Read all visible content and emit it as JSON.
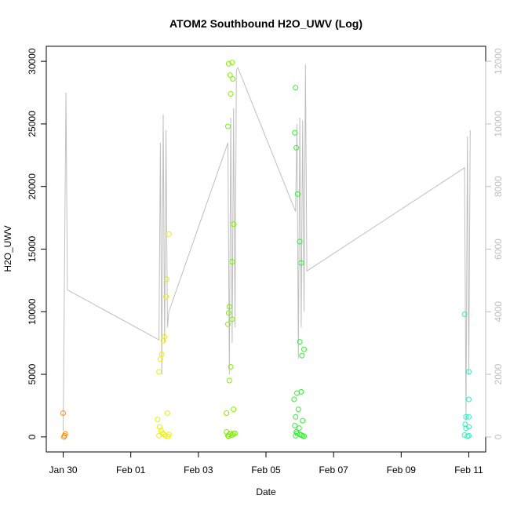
{
  "chart_data": {
    "type": "scatter",
    "title": "ATOM2 Southbound H2O_UWV (Log)",
    "xlabel": "Date",
    "ylabel": "H2O_UWV",
    "xlim": [
      "2017-01-29 12:00",
      "2017-02-11 12:00"
    ],
    "ylim": [
      -1200,
      31200
    ],
    "y2lim": [
      -480,
      12480
    ],
    "x_ticks": [
      {
        "label": "Jan 30",
        "value": "2017-01-30 00:00"
      },
      {
        "label": "Feb 01",
        "value": "2017-02-01 00:00"
      },
      {
        "label": "Feb 03",
        "value": "2017-02-03 00:00"
      },
      {
        "label": "Feb 05",
        "value": "2017-02-05 00:00"
      },
      {
        "label": "Feb 07",
        "value": "2017-02-07 00:00"
      },
      {
        "label": "Feb 09",
        "value": "2017-02-09 00:00"
      },
      {
        "label": "Feb 11",
        "value": "2017-02-11 00:00"
      }
    ],
    "y_ticks": [
      {
        "label": "0",
        "value": 0
      },
      {
        "label": "5000",
        "value": 5000
      },
      {
        "label": "10000",
        "value": 10000
      },
      {
        "label": "15000",
        "value": 15000
      },
      {
        "label": "20000",
        "value": 20000
      },
      {
        "label": "25000",
        "value": 25000
      },
      {
        "label": "30000",
        "value": 30000
      }
    ],
    "y2_ticks": [
      {
        "label": "0",
        "value": 0
      },
      {
        "label": "2000",
        "value": 2000
      },
      {
        "label": "4000",
        "value": 4000
      },
      {
        "label": "6000",
        "value": 6000
      },
      {
        "label": "8000",
        "value": 8000
      },
      {
        "label": "10000",
        "value": 10000
      },
      {
        "label": "12000",
        "value": 12000
      }
    ],
    "grid": false,
    "legend": "none",
    "colors": {
      "track_line": "#bfbfbf",
      "axis": "#000000",
      "right_axis": "#bfbfbf"
    },
    "track_line": {
      "axis": "right",
      "points": [
        [
          "2017-01-30 00:00",
          200
        ],
        [
          "2017-01-30 02:00",
          11000
        ],
        [
          "2017-01-30 03:00",
          4700
        ],
        [
          "2017-02-01 20:00",
          3100
        ],
        [
          "2017-02-01 21:00",
          9400
        ],
        [
          "2017-02-01 22:00",
          2000
        ],
        [
          "2017-02-01 23:00",
          10300
        ],
        [
          "2017-02-02 00:00",
          3000
        ],
        [
          "2017-02-02 01:00",
          9800
        ],
        [
          "2017-02-02 02:00",
          3500
        ],
        [
          "2017-02-02 03:00",
          4000
        ],
        [
          "2017-02-03 21:00",
          9400
        ],
        [
          "2017-02-03 22:00",
          2000
        ],
        [
          "2017-02-03 23:00",
          10200
        ],
        [
          "2017-02-04 00:00",
          3000
        ],
        [
          "2017-02-04 01:00",
          10500
        ],
        [
          "2017-02-04 02:00",
          3500
        ],
        [
          "2017-02-04 03:00",
          11700
        ],
        [
          "2017-02-04 04:00",
          11800
        ],
        [
          "2017-02-05 21:00",
          7200
        ],
        [
          "2017-02-05 22:00",
          10000
        ],
        [
          "2017-02-05 23:00",
          2500
        ],
        [
          "2017-02-06 00:00",
          10200
        ],
        [
          "2017-02-06 01:00",
          3500
        ],
        [
          "2017-02-06 02:00",
          10100
        ],
        [
          "2017-02-06 03:00",
          4000
        ],
        [
          "2017-02-06 04:00",
          11900
        ],
        [
          "2017-02-06 05:00",
          5300
        ],
        [
          "2017-02-10 21:00",
          8600
        ],
        [
          "2017-02-10 22:00",
          500
        ],
        [
          "2017-02-10 23:00",
          9600
        ],
        [
          "2017-02-11 00:00",
          2000
        ],
        [
          "2017-02-11 01:00",
          9800
        ]
      ]
    },
    "series": [
      {
        "color": "#ff8c00",
        "points": [
          [
            "2017-01-30 00:00",
            1900
          ],
          [
            "2017-01-30 00:30",
            0
          ],
          [
            "2017-01-30 01:00",
            100
          ],
          [
            "2017-01-30 01:30",
            250
          ]
        ]
      },
      {
        "color": "#eeee00",
        "points": [
          [
            "2017-02-01 20:00",
            5200
          ],
          [
            "2017-02-01 21:00",
            6200
          ],
          [
            "2017-02-01 22:00",
            6600
          ],
          [
            "2017-02-01 23:00",
            7700
          ],
          [
            "2017-02-02 00:00",
            8000
          ],
          [
            "2017-02-02 01:00",
            11200
          ],
          [
            "2017-02-02 01:30",
            12600
          ],
          [
            "2017-02-02 03:00",
            16200
          ],
          [
            "2017-02-01 19:00",
            1400
          ],
          [
            "2017-02-02 02:00",
            1900
          ],
          [
            "2017-02-01 20:30",
            800
          ],
          [
            "2017-02-01 21:30",
            500
          ],
          [
            "2017-02-01 22:30",
            300
          ],
          [
            "2017-02-01 23:30",
            200
          ],
          [
            "2017-02-02 00:30",
            100
          ],
          [
            "2017-02-02 02:30",
            50
          ],
          [
            "2017-02-01 20:00",
            100
          ],
          [
            "2017-02-02 03:00",
            200
          ]
        ]
      },
      {
        "color": "#80ee00",
        "points": [
          [
            "2017-02-03 21:00",
            24800
          ],
          [
            "2017-02-03 21:30",
            29800
          ],
          [
            "2017-02-03 22:30",
            28900
          ],
          [
            "2017-02-03 23:00",
            27400
          ],
          [
            "2017-02-04 00:00",
            29900
          ],
          [
            "2017-02-04 00:30",
            28600
          ],
          [
            "2017-02-04 01:00",
            17000
          ],
          [
            "2017-02-04 00:00",
            14000
          ],
          [
            "2017-02-03 22:00",
            10400
          ],
          [
            "2017-02-03 21:30",
            9900
          ],
          [
            "2017-02-03 21:00",
            9000
          ],
          [
            "2017-02-04 00:00",
            9400
          ],
          [
            "2017-02-03 23:00",
            5600
          ],
          [
            "2017-02-03 22:00",
            4500
          ],
          [
            "2017-02-04 01:00",
            2200
          ],
          [
            "2017-02-03 20:00",
            1900
          ],
          [
            "2017-02-03 20:00",
            400
          ],
          [
            "2017-02-03 21:00",
            100
          ],
          [
            "2017-02-03 22:00",
            200
          ],
          [
            "2017-02-03 23:00",
            300
          ],
          [
            "2017-02-04 00:00",
            150
          ],
          [
            "2017-02-04 01:00",
            250
          ],
          [
            "2017-02-04 02:00",
            300
          ],
          [
            "2017-02-03 21:30",
            50
          ]
        ]
      },
      {
        "color": "#33ee33",
        "points": [
          [
            "2017-02-05 21:00",
            27900
          ],
          [
            "2017-02-05 20:30",
            24300
          ],
          [
            "2017-02-05 21:30",
            23100
          ],
          [
            "2017-02-05 22:30",
            19400
          ],
          [
            "2017-02-06 00:00",
            15600
          ],
          [
            "2017-02-06 01:00",
            13900
          ],
          [
            "2017-02-06 00:00",
            7600
          ],
          [
            "2017-02-06 03:00",
            7000
          ],
          [
            "2017-02-06 01:30",
            6500
          ],
          [
            "2017-02-06 01:00",
            3600
          ],
          [
            "2017-02-05 22:00",
            3500
          ],
          [
            "2017-02-05 20:00",
            3000
          ],
          [
            "2017-02-05 23:00",
            2200
          ],
          [
            "2017-02-05 21:00",
            1600
          ],
          [
            "2017-02-06 02:00",
            1300
          ],
          [
            "2017-02-05 20:30",
            900
          ],
          [
            "2017-02-05 23:30",
            700
          ],
          [
            "2017-02-05 21:30",
            400
          ],
          [
            "2017-02-05 22:00",
            300
          ],
          [
            "2017-02-06 00:00",
            200
          ],
          [
            "2017-02-06 01:00",
            150
          ],
          [
            "2017-02-06 02:00",
            100
          ],
          [
            "2017-02-06 03:00",
            50
          ],
          [
            "2017-02-05 21:00",
            100
          ]
        ]
      },
      {
        "color": "#33eebb",
        "points": [
          [
            "2017-02-10 21:00",
            9800
          ],
          [
            "2017-02-11 00:00",
            5200
          ],
          [
            "2017-02-11 00:00",
            3000
          ],
          [
            "2017-02-10 22:00",
            1600
          ],
          [
            "2017-02-11 00:00",
            1600
          ],
          [
            "2017-02-10 21:30",
            1000
          ],
          [
            "2017-02-11 00:00",
            800
          ],
          [
            "2017-02-10 22:00",
            700
          ],
          [
            "2017-02-10 21:00",
            150
          ],
          [
            "2017-02-11 00:00",
            100
          ],
          [
            "2017-02-10 23:00",
            50
          ]
        ]
      }
    ]
  }
}
